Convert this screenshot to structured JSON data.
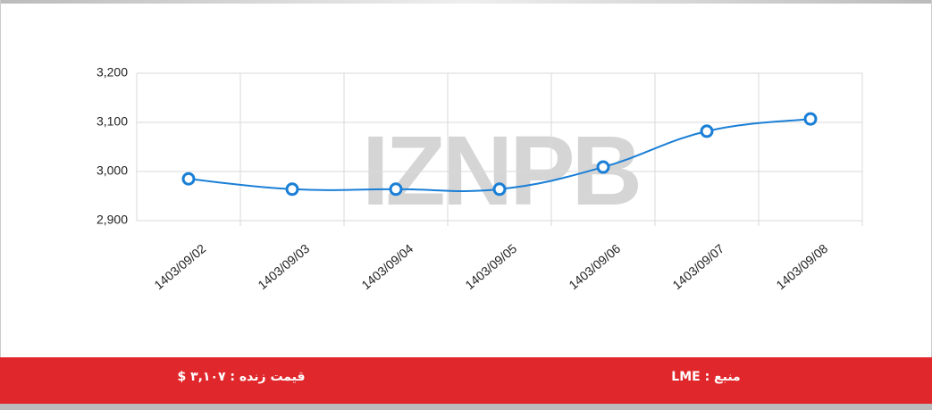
{
  "chart_data": {
    "type": "line",
    "watermark": "IZNPB",
    "categories": [
      "1403/09/02",
      "1403/09/03",
      "1403/09/04",
      "1403/09/05",
      "1403/09/06",
      "1403/09/07",
      "1403/09/08"
    ],
    "series": [
      {
        "color": "#1a7fd6",
        "values": [
          2985,
          2964,
          2964,
          2964,
          3009,
          3082,
          3107
        ]
      }
    ],
    "ylim": [
      2900,
      3200
    ],
    "yticks": [
      {
        "value": 2900,
        "label": "2,900"
      },
      {
        "value": 3000,
        "label": "3,000"
      },
      {
        "value": 3100,
        "label": "3,100"
      },
      {
        "value": 3200,
        "label": "3,200"
      }
    ],
    "grid": true
  },
  "footer": {
    "live_price": "قیمت زنده : ۳,۱۰۷ $",
    "source": "منبع : LME"
  }
}
